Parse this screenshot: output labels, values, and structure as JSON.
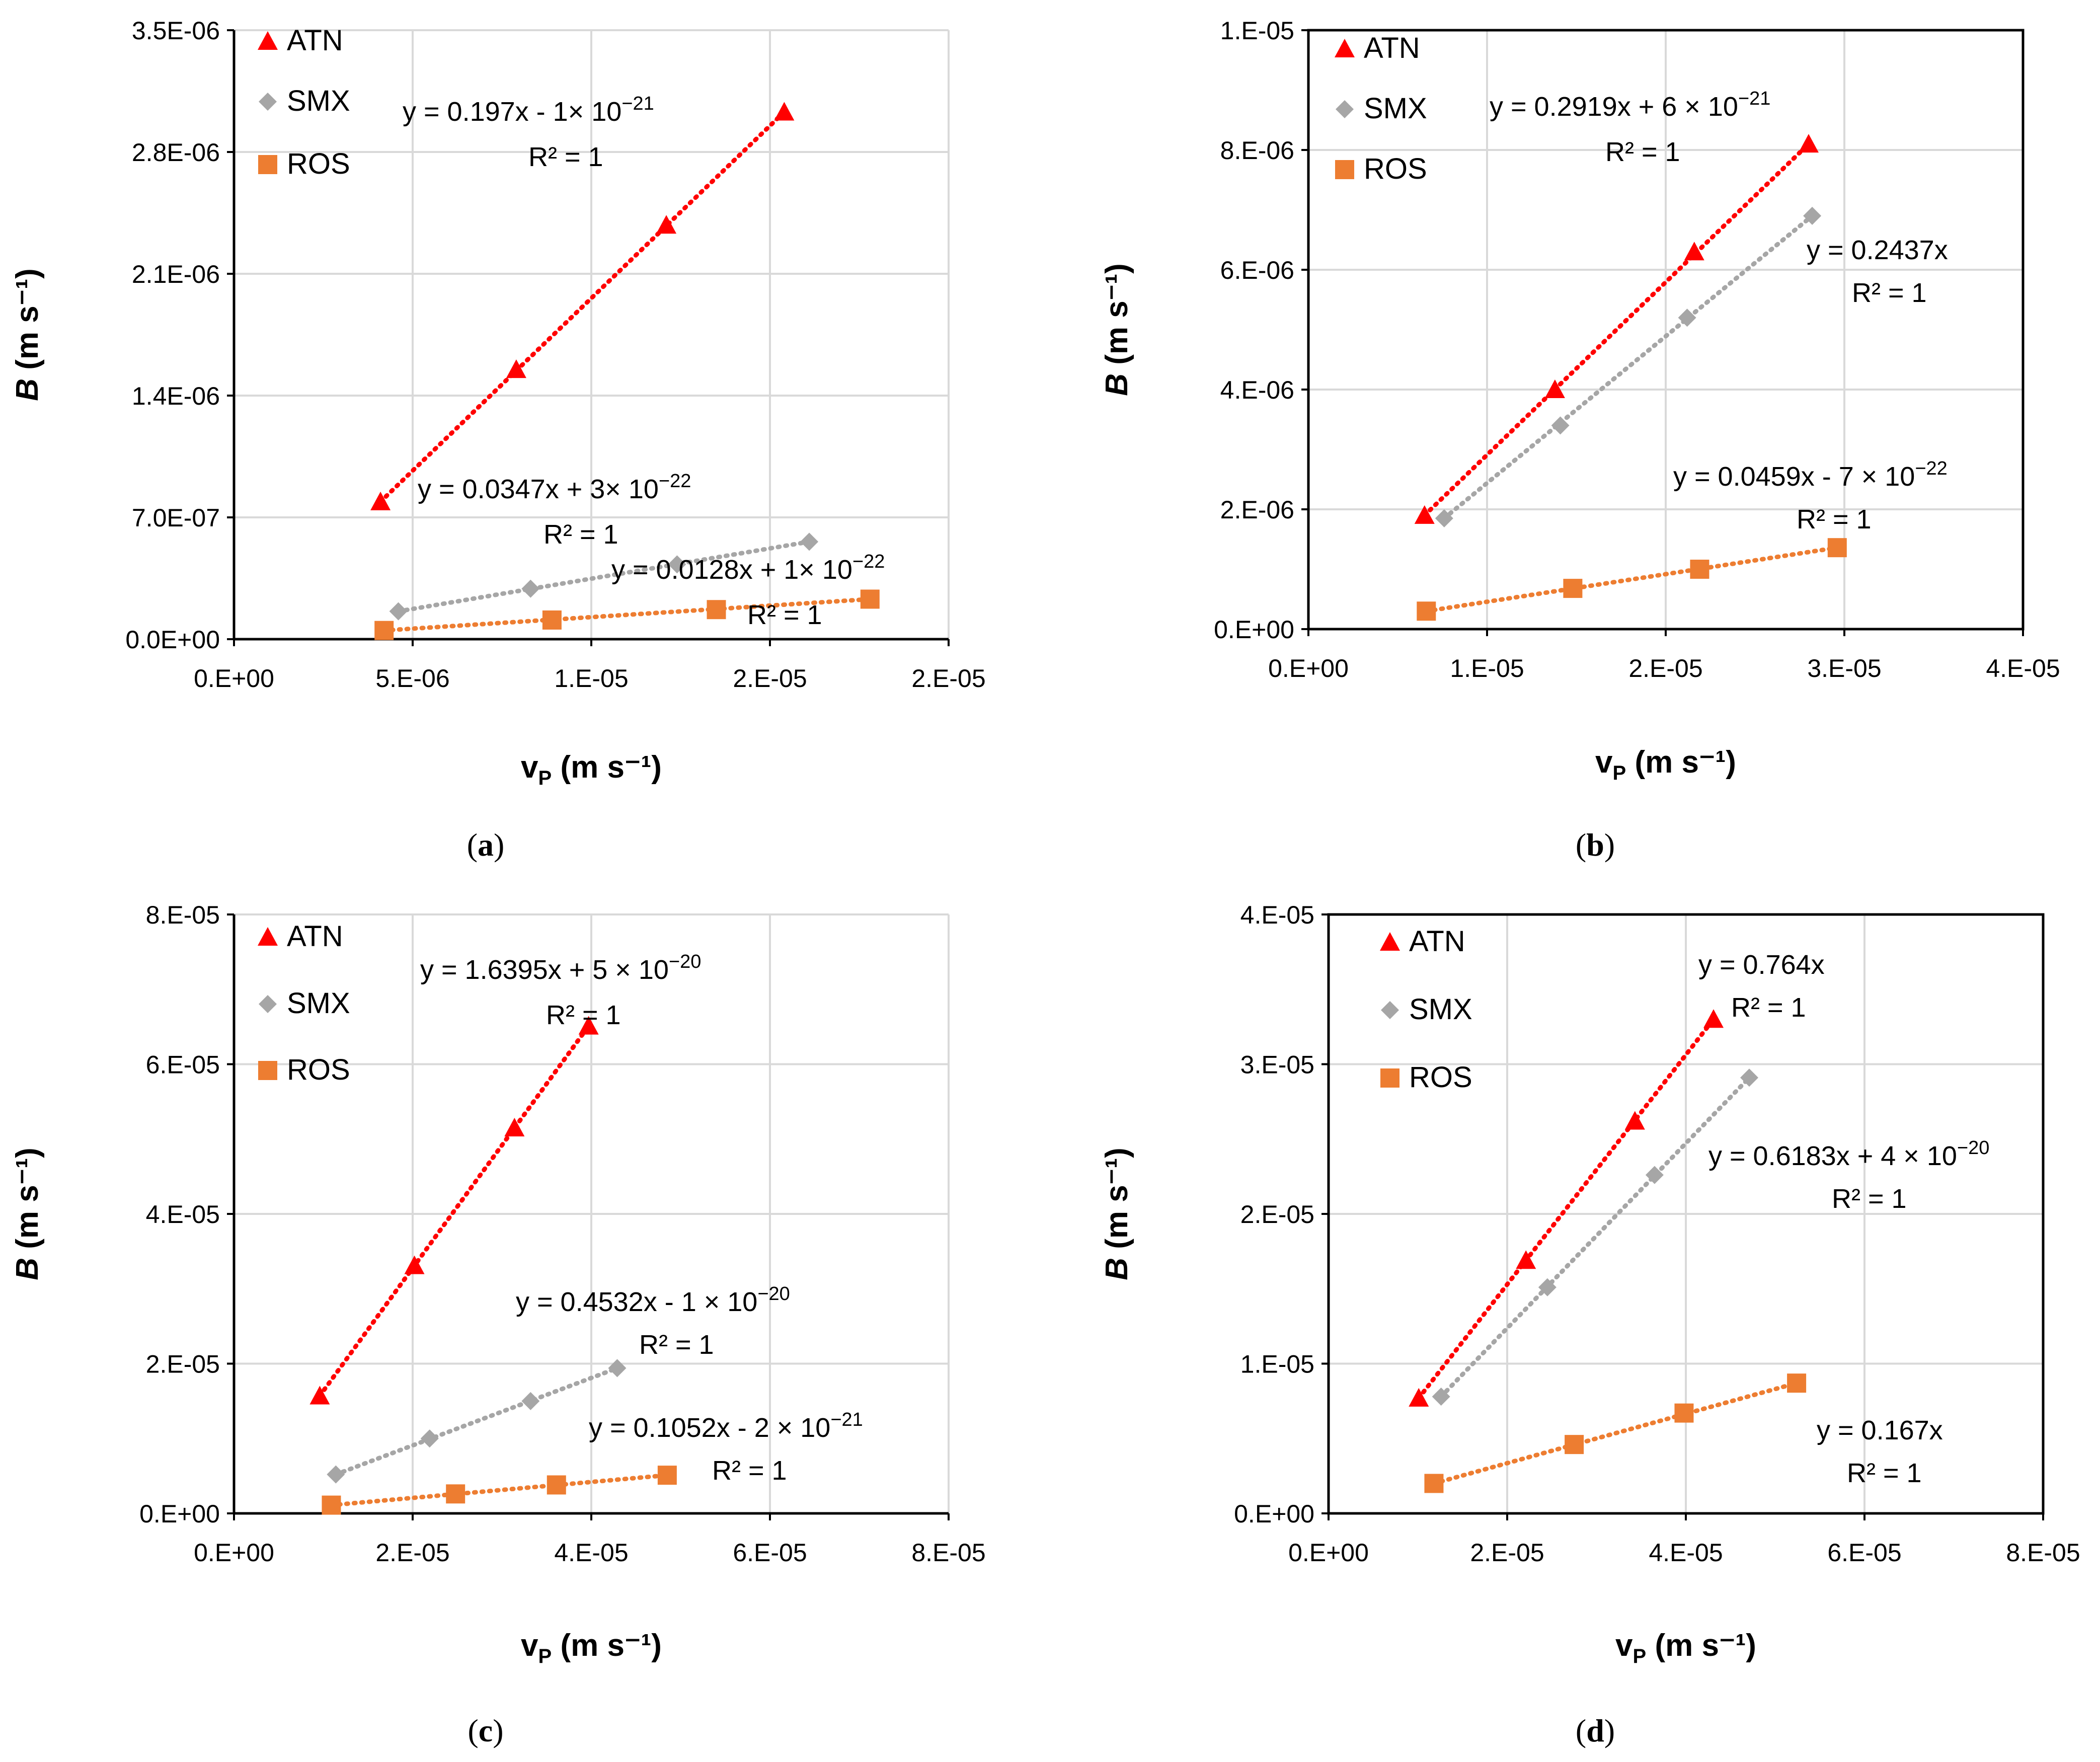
{
  "colors": {
    "ATN": "#ff0000",
    "SMX": "#a6a6a6",
    "ROS": "#ed7d31",
    "grid": "#d9d9d9",
    "axis": "#000000"
  },
  "chart_data": [
    {
      "id": "a",
      "type": "scatter",
      "caption": "(a)",
      "xlabel": "v_P (m s⁻¹)",
      "ylabel": "B (m s⁻¹)",
      "xlim": [
        0,
        2e-05
      ],
      "ylim": [
        0,
        3.5e-06
      ],
      "x_ticks": [
        0,
        5e-06,
        1e-05,
        1.5e-05,
        2e-05
      ],
      "x_tick_labels": [
        "0.E+00",
        "5.E-06",
        "1.E-05",
        "2.E-05",
        "2.E-05"
      ],
      "y_ticks": [
        0,
        7e-07,
        1.4e-06,
        2.1e-06,
        2.8e-06,
        3.5e-06
      ],
      "y_tick_labels": [
        "0.0E+00",
        "7.0E-07",
        "1.4E-06",
        "2.1E-06",
        "2.8E-06",
        "3.5E-06"
      ],
      "legend": [
        "ATN",
        "SMX",
        "ROS"
      ],
      "series": [
        {
          "name": "ATN",
          "marker": "triangle",
          "x": [
            4.1e-06,
            7.9e-06,
            1.21e-05,
            1.54e-05
          ],
          "y": [
            7.9e-07,
            1.55e-06,
            2.38e-06,
            3.03e-06
          ]
        },
        {
          "name": "SMX",
          "marker": "diamond",
          "x": [
            4.6e-06,
            8.3e-06,
            1.24e-05,
            1.61e-05
          ],
          "y": [
            1.6e-07,
            2.9e-07,
            4.3e-07,
            5.6e-07
          ]
        },
        {
          "name": "ROS",
          "marker": "square",
          "x": [
            4.2e-06,
            8.9e-06,
            1.35e-05,
            1.78e-05
          ],
          "y": [
            5e-08,
            1.1e-07,
            1.7e-07,
            2.3e-07
          ]
        }
      ],
      "annotations": [
        {
          "text": "y = 0.197x - 1× 10",
          "sup": "−21",
          "r2": "R² = 1"
        },
        {
          "text": "y = 0.0347x + 3× 10",
          "sup": "−22",
          "r2": "R² = 1"
        },
        {
          "text": "y = 0.0128x + 1× 10",
          "sup": "−22",
          "r2": "R² = 1"
        }
      ]
    },
    {
      "id": "b",
      "type": "scatter",
      "caption": "(b)",
      "xlabel": "v_P (m s⁻¹)",
      "ylabel": "B (m s⁻¹)",
      "xlim": [
        0,
        4e-05
      ],
      "ylim": [
        0,
        1e-05
      ],
      "x_ticks": [
        0,
        1e-05,
        2e-05,
        3e-05,
        4e-05
      ],
      "x_tick_labels": [
        "0.E+00",
        "1.E-05",
        "2.E-05",
        "3.E-05",
        "4.E-05"
      ],
      "y_ticks": [
        0,
        2e-06,
        4e-06,
        6e-06,
        8e-06,
        1e-05
      ],
      "y_tick_labels": [
        "0.E+00",
        "2.E-06",
        "4.E-06",
        "6.E-06",
        "8.E-06",
        "1.E-05"
      ],
      "legend": [
        "ATN",
        "SMX",
        "ROS"
      ],
      "series": [
        {
          "name": "ATN",
          "marker": "triangle",
          "x": [
            6.5e-06,
            1.38e-05,
            2.16e-05,
            2.8e-05
          ],
          "y": [
            1.9e-06,
            4e-06,
            6.3e-06,
            8.1e-06
          ]
        },
        {
          "name": "SMX",
          "marker": "diamond",
          "x": [
            7.6e-06,
            1.41e-05,
            2.12e-05,
            2.82e-05
          ],
          "y": [
            1.85e-06,
            3.4e-06,
            5.2e-06,
            6.9e-06
          ]
        },
        {
          "name": "ROS",
          "marker": "square",
          "x": [
            6.6e-06,
            1.48e-05,
            2.19e-05,
            2.96e-05
          ],
          "y": [
            3e-07,
            6.8e-07,
            1e-06,
            1.36e-06
          ]
        }
      ],
      "annotations": [
        {
          "text": "y = 0.2919x + 6 × 10",
          "sup": "−21",
          "r2": "R² = 1"
        },
        {
          "text": "y = 0.2437x",
          "sup": "",
          "r2": "R² = 1"
        },
        {
          "text": "y = 0.0459x - 7 × 10",
          "sup": "−22",
          "r2": "R² = 1"
        }
      ]
    },
    {
      "id": "c",
      "type": "scatter",
      "caption": "(c)",
      "xlabel": "v_P (m s⁻¹)",
      "ylabel": "B (m s⁻¹)",
      "xlim": [
        0,
        8e-05
      ],
      "ylim": [
        0,
        8e-05
      ],
      "x_ticks": [
        0,
        2e-05,
        4e-05,
        6e-05,
        8e-05
      ],
      "x_tick_labels": [
        "0.E+00",
        "2.E-05",
        "4.E-05",
        "6.E-05",
        "8.E-05"
      ],
      "y_ticks": [
        0,
        2e-05,
        4e-05,
        6e-05,
        8e-05
      ],
      "y_tick_labels": [
        "0.E+00",
        "2.E-05",
        "4.E-05",
        "6.E-05",
        "8.E-05"
      ],
      "legend": [
        "ATN",
        "SMX",
        "ROS"
      ],
      "series": [
        {
          "name": "ATN",
          "marker": "triangle",
          "x": [
            9.6e-06,
            2.02e-05,
            3.14e-05,
            3.97e-05
          ],
          "y": [
            1.57e-05,
            3.31e-05,
            5.15e-05,
            6.51e-05
          ]
        },
        {
          "name": "SMX",
          "marker": "diamond",
          "x": [
            1.14e-05,
            2.19e-05,
            3.32e-05,
            4.29e-05
          ],
          "y": [
            5.2e-06,
            1e-05,
            1.5e-05,
            1.94e-05
          ]
        },
        {
          "name": "ROS",
          "marker": "square",
          "x": [
            1.09e-05,
            2.48e-05,
            3.61e-05,
            4.85e-05
          ],
          "y": [
            1.1e-06,
            2.6e-06,
            3.8e-06,
            5.1e-06
          ]
        }
      ],
      "annotations": [
        {
          "text": "y = 1.6395x + 5 × 10",
          "sup": "−20",
          "r2": "R² = 1"
        },
        {
          "text": "y = 0.4532x - 1 × 10",
          "sup": "−20",
          "r2": "R² = 1"
        },
        {
          "text": "y = 0.1052x - 2 × 10",
          "sup": "−21",
          "r2": "R² = 1"
        }
      ]
    },
    {
      "id": "d",
      "type": "scatter",
      "caption": "(d)",
      "xlabel": "v_P (m s⁻¹)",
      "ylabel": "B (m s⁻¹)",
      "xlim": [
        0,
        8e-05
      ],
      "ylim": [
        0,
        4e-05
      ],
      "x_ticks": [
        0,
        2e-05,
        4e-05,
        6e-05,
        8e-05
      ],
      "x_tick_labels": [
        "0.E+00",
        "2.E-05",
        "4.E-05",
        "6.E-05",
        "8.E-05"
      ],
      "y_ticks": [
        0,
        1e-05,
        2e-05,
        3e-05,
        4e-05
      ],
      "y_tick_labels": [
        "0.E+00",
        "1.E-05",
        "2.E-05",
        "3.E-05",
        "4.E-05"
      ],
      "legend": [
        "ATN",
        "SMX",
        "ROS"
      ],
      "series": [
        {
          "name": "ATN",
          "marker": "triangle",
          "x": [
            1.01e-05,
            2.21e-05,
            3.43e-05,
            4.31e-05
          ],
          "y": [
            7.7e-06,
            1.69e-05,
            2.62e-05,
            3.3e-05
          ]
        },
        {
          "name": "SMX",
          "marker": "diamond",
          "x": [
            1.26e-05,
            2.45e-05,
            3.65e-05,
            4.71e-05
          ],
          "y": [
            7.8e-06,
            1.51e-05,
            2.26e-05,
            2.91e-05
          ]
        },
        {
          "name": "ROS",
          "marker": "square",
          "x": [
            1.18e-05,
            2.75e-05,
            3.98e-05,
            5.24e-05
          ],
          "y": [
            2e-06,
            4.6e-06,
            6.7e-06,
            8.7e-06
          ]
        }
      ],
      "annotations": [
        {
          "text": "y = 0.764x",
          "sup": "",
          "r2": "R² = 1"
        },
        {
          "text": "y = 0.6183x + 4 × 10",
          "sup": "−20",
          "r2": "R² = 1"
        },
        {
          "text": "y = 0.167x",
          "sup": "",
          "r2": "R² = 1"
        }
      ]
    }
  ]
}
